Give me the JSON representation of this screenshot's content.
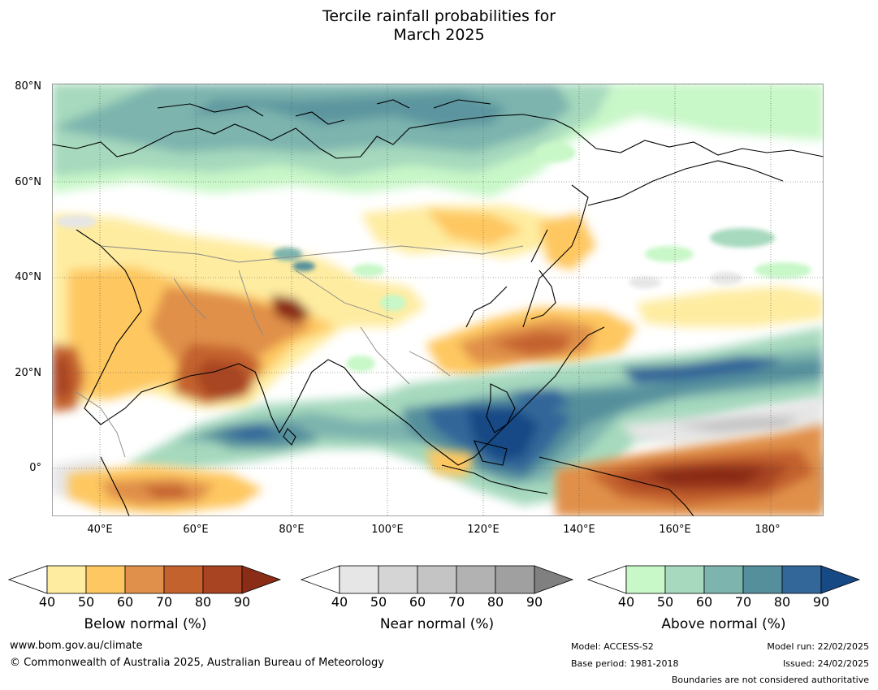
{
  "title_line1": "Tercile rainfall probabilities for",
  "title_line2": "March 2025",
  "map": {
    "lat_labels": [
      "80°N",
      "60°N",
      "40°N",
      "20°N",
      "0°"
    ],
    "lon_labels": [
      "40°E",
      "60°E",
      "80°E",
      "100°E",
      "120°E",
      "140°E",
      "160°E",
      "180°"
    ],
    "extent": {
      "lon_min": 30,
      "lon_max": 191,
      "lat_min": -10,
      "lat_max": 80
    }
  },
  "legend": {
    "below": {
      "title": "Below normal (%)",
      "ticks": [
        "40",
        "50",
        "60",
        "70",
        "80",
        "90"
      ],
      "colors": [
        "#ffffff",
        "#feeca0",
        "#fec761",
        "#e0904a",
        "#c4622e",
        "#a84422",
        "#8b2c16"
      ]
    },
    "near": {
      "title": "Near normal (%)",
      "ticks": [
        "40",
        "50",
        "60",
        "70",
        "80",
        "90"
      ],
      "colors": [
        "#ffffff",
        "#e6e6e6",
        "#d5d5d5",
        "#c4c4c4",
        "#b2b2b2",
        "#a0a0a0",
        "#808080"
      ]
    },
    "above": {
      "title": "Above normal (%)",
      "ticks": [
        "40",
        "50",
        "60",
        "70",
        "80",
        "90"
      ],
      "colors": [
        "#ffffff",
        "#c8f7c8",
        "#a6d9bd",
        "#7db4ae",
        "#558f9c",
        "#336699",
        "#174a85"
      ]
    }
  },
  "footer": {
    "website": "www.bom.gov.au/climate",
    "copyright": "© Commonwealth of Australia 2025, Australian Bureau of Meteorology",
    "model": "Model: ACCESS-S2",
    "base_period": "Base period: 1981-2018",
    "model_run": "Model run: 22/02/2025",
    "issued": "Issued: 24/02/2025",
    "disclaimer": "Boundaries are not considered authoritative"
  }
}
